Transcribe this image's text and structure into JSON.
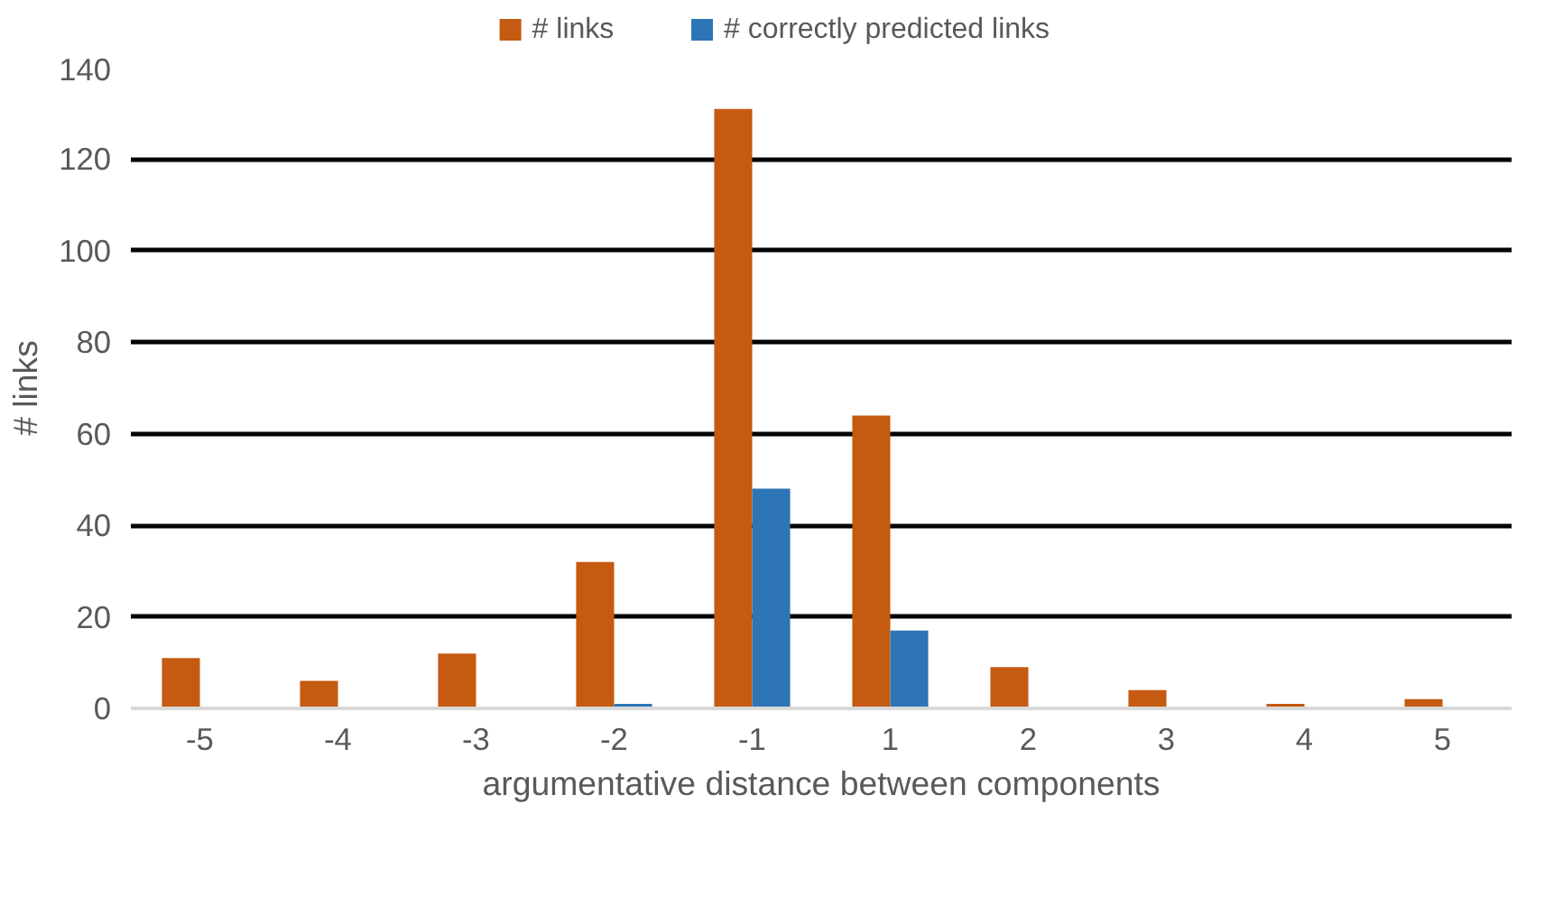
{
  "chart_data": {
    "type": "bar",
    "xlabel": "argumentative distance between components",
    "ylabel": "# links",
    "categories": [
      "-5",
      "-4",
      "-3",
      "-2",
      "-1",
      "1",
      "2",
      "3",
      "4",
      "5"
    ],
    "series": [
      {
        "name": "# links",
        "color": "#c55a11",
        "values": [
          11,
          6,
          12,
          32,
          131,
          64,
          9,
          4,
          1,
          2
        ]
      },
      {
        "name": "# correctly predicted links",
        "color": "#2e75b6",
        "values": [
          0,
          0,
          0,
          1,
          48,
          17,
          0,
          0,
          0,
          0
        ]
      }
    ],
    "ylim": [
      0,
      140
    ],
    "yticks": [
      0,
      20,
      40,
      60,
      80,
      100,
      120,
      140
    ],
    "grid": "y",
    "legend": "top"
  }
}
